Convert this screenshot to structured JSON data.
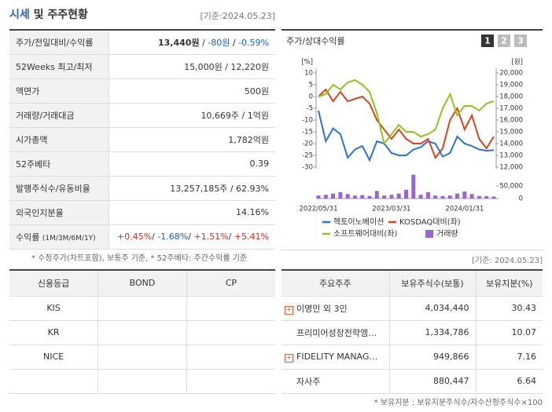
{
  "header": {
    "title_main": "시세",
    "title_rest": "및 주주현황",
    "date": "[기준:2024.05.23]"
  },
  "summary": {
    "rows": [
      {
        "label": "주가/전일대비/수익률",
        "parts": [
          "13,440원",
          "-80원",
          "-0.59%"
        ],
        "sep": " / "
      },
      {
        "label": "52Weeks 최고/최저",
        "parts": [
          "15,000원",
          "12,220원"
        ],
        "sep": " / "
      },
      {
        "label": "액면가",
        "parts": [
          "500원"
        ]
      },
      {
        "label": "거래량/거래대금",
        "parts": [
          "10,669주",
          "1억원"
        ],
        "sep": " / "
      },
      {
        "label": "시가총액",
        "parts": [
          "1,782억원"
        ]
      },
      {
        "label": "52주베타",
        "parts": [
          "0.39"
        ]
      },
      {
        "label": "발행주식수/유동비율",
        "parts": [
          "13,257,185주",
          "62.93%"
        ],
        "sep": " / "
      },
      {
        "label": "외국인지분율",
        "parts": [
          "14.16%"
        ]
      },
      {
        "label": "수익률",
        "note": "(1M/3M/6M/1Y)",
        "parts": [
          "+0.45%",
          "-1.68%",
          "+1.51%",
          "+5.41%"
        ],
        "sep": "/ "
      }
    ],
    "footnote": "* 수정주가(차트포함), 보통주 기준, * 52주베타: 주간수익률 기준"
  },
  "chart_panel": {
    "title": "주가/상대수익률",
    "tabs": [
      "1",
      "2",
      "3"
    ]
  },
  "chart_data": {
    "type": "line",
    "ylabel": "[%]",
    "y2label": "[원]",
    "categories": [
      "2022/05/31",
      null,
      null,
      null,
      null,
      null,
      null,
      null,
      null,
      null,
      "2023/03/31",
      null,
      null,
      null,
      null,
      null,
      null,
      null,
      null,
      null,
      "2024/01/31",
      null,
      null,
      null,
      null
    ],
    "ylim": [
      -30,
      10
    ],
    "yticks": [
      10,
      5,
      0,
      -5,
      -10,
      -15,
      -20,
      -25,
      -30
    ],
    "y2lim": [
      12000,
      20000
    ],
    "y2ticks": [
      {
        "value": 20000,
        "label": "20,000"
      },
      {
        "value": 19000,
        "label": "19,000"
      },
      {
        "value": 18000,
        "label": "18,000"
      },
      {
        "value": 17000,
        "label": "17,000"
      },
      {
        "value": 16000,
        "label": "16,000"
      },
      {
        "value": 15000,
        "label": "15,000"
      },
      {
        "value": 14000,
        "label": "14,000"
      },
      {
        "value": 13000,
        "label": "13,000"
      },
      {
        "value": 12000,
        "label": "12,000"
      }
    ],
    "vlim": [
      0,
      50000
    ],
    "vticks": [
      {
        "value": 50000,
        "label": "50,000"
      },
      0
    ],
    "series": [
      {
        "name": "헥토이노베이션",
        "color": "#2a74d0",
        "axis": "y2",
        "values": [
          16800,
          14200,
          15300,
          14800,
          12800,
          13500,
          13800,
          12600,
          14200,
          14000,
          13200,
          13000,
          13000,
          13500,
          13700,
          14200,
          14000,
          12900,
          13200,
          14600,
          14000,
          13800,
          13500,
          13400,
          13440
        ]
      },
      {
        "name": "KOSDAQ대비(좌)",
        "color": "#d9431e",
        "axis": "y",
        "values": [
          0,
          3,
          -2,
          2,
          -2,
          -1,
          0,
          -3,
          -10,
          -14,
          -18,
          -14,
          -18,
          -20,
          -20,
          -18,
          -26,
          -22,
          -10,
          -5,
          -14,
          -8,
          -18,
          -22,
          -17
        ]
      },
      {
        "name": "소프트웨어대비(좌)",
        "color": "#8fc31f",
        "axis": "y",
        "values": [
          0,
          1,
          5,
          3,
          6,
          7,
          5,
          2,
          -7,
          -20,
          -16,
          -12,
          -15,
          -15,
          -17,
          -16,
          -14,
          -5,
          1,
          -8,
          -4,
          -4,
          -6,
          -3,
          -2
        ]
      },
      {
        "name": "거래량",
        "color": "#9966cc",
        "axis": "volume",
        "type": "bar",
        "values": [
          12000,
          15000,
          20000,
          25000,
          18000,
          12000,
          14000,
          10000,
          30000,
          12000,
          15000,
          20000,
          35000,
          95000,
          15000,
          25000,
          12000,
          10000,
          12000,
          20000,
          28000,
          18000,
          10000,
          10000,
          8000
        ]
      }
    ]
  },
  "credit": {
    "headers": [
      "신용등급",
      "BOND",
      "CP"
    ],
    "rows": [
      [
        "KIS"
      ],
      [
        "KR"
      ],
      [
        "NICE"
      ]
    ]
  },
  "holders": {
    "date": "[기준: 2024.05.23]",
    "headers": [
      "주요주주",
      "보유주식수(보통)",
      "보유지분(%)"
    ],
    "rows": [
      {
        "name": "이명민 외 3인",
        "shares": "4,034,440",
        "pct": "30.43",
        "expand": true
      },
      {
        "name": "프리미어성장전략엠앤…",
        "shares": "1,334,786",
        "pct": "10.07"
      },
      {
        "name": "FIDELITY MANAGEM…",
        "shares": "949,866",
        "pct": "7.16",
        "expand": true
      },
      {
        "name": "자사주",
        "shares": "880,447",
        "pct": "6.64"
      }
    ],
    "note": "* 보유지분 : 보유지분주식수/자수산정주식수×100"
  }
}
